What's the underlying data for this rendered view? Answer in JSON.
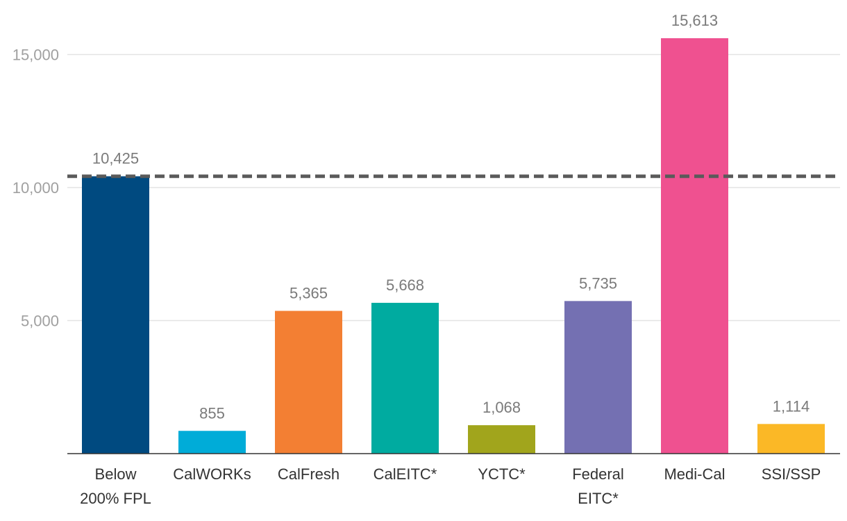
{
  "chart_data": {
    "type": "bar",
    "categories": [
      [
        "Below",
        "200% FPL"
      ],
      [
        "CalWORKs"
      ],
      [
        "CalFresh"
      ],
      [
        "CalEITC*"
      ],
      [
        "YCTC*"
      ],
      [
        "Federal",
        "EITC*"
      ],
      [
        "Medi-Cal"
      ],
      [
        "SSI/SSP"
      ]
    ],
    "values": [
      10425,
      855,
      5365,
      5668,
      1068,
      5735,
      15613,
      1114
    ],
    "value_labels": [
      "10,425",
      "855",
      "5,365",
      "5,668",
      "1,068",
      "5,735",
      "15,613",
      "1,114"
    ],
    "colors": [
      "#004a80",
      "#00acd8",
      "#f37f33",
      "#00aba0",
      "#a1a51c",
      "#7470b2",
      "#ef5190",
      "#fbb826"
    ],
    "yticks": [
      5000,
      10000,
      15000
    ],
    "ytick_labels": [
      "5,000",
      "10,000",
      "15,000"
    ],
    "ylim": [
      0,
      16500
    ],
    "reference_line": {
      "value": 10425,
      "style": "dashed",
      "color": "#5a5a5a"
    },
    "grid": true,
    "title": "",
    "xlabel": "",
    "ylabel": ""
  }
}
